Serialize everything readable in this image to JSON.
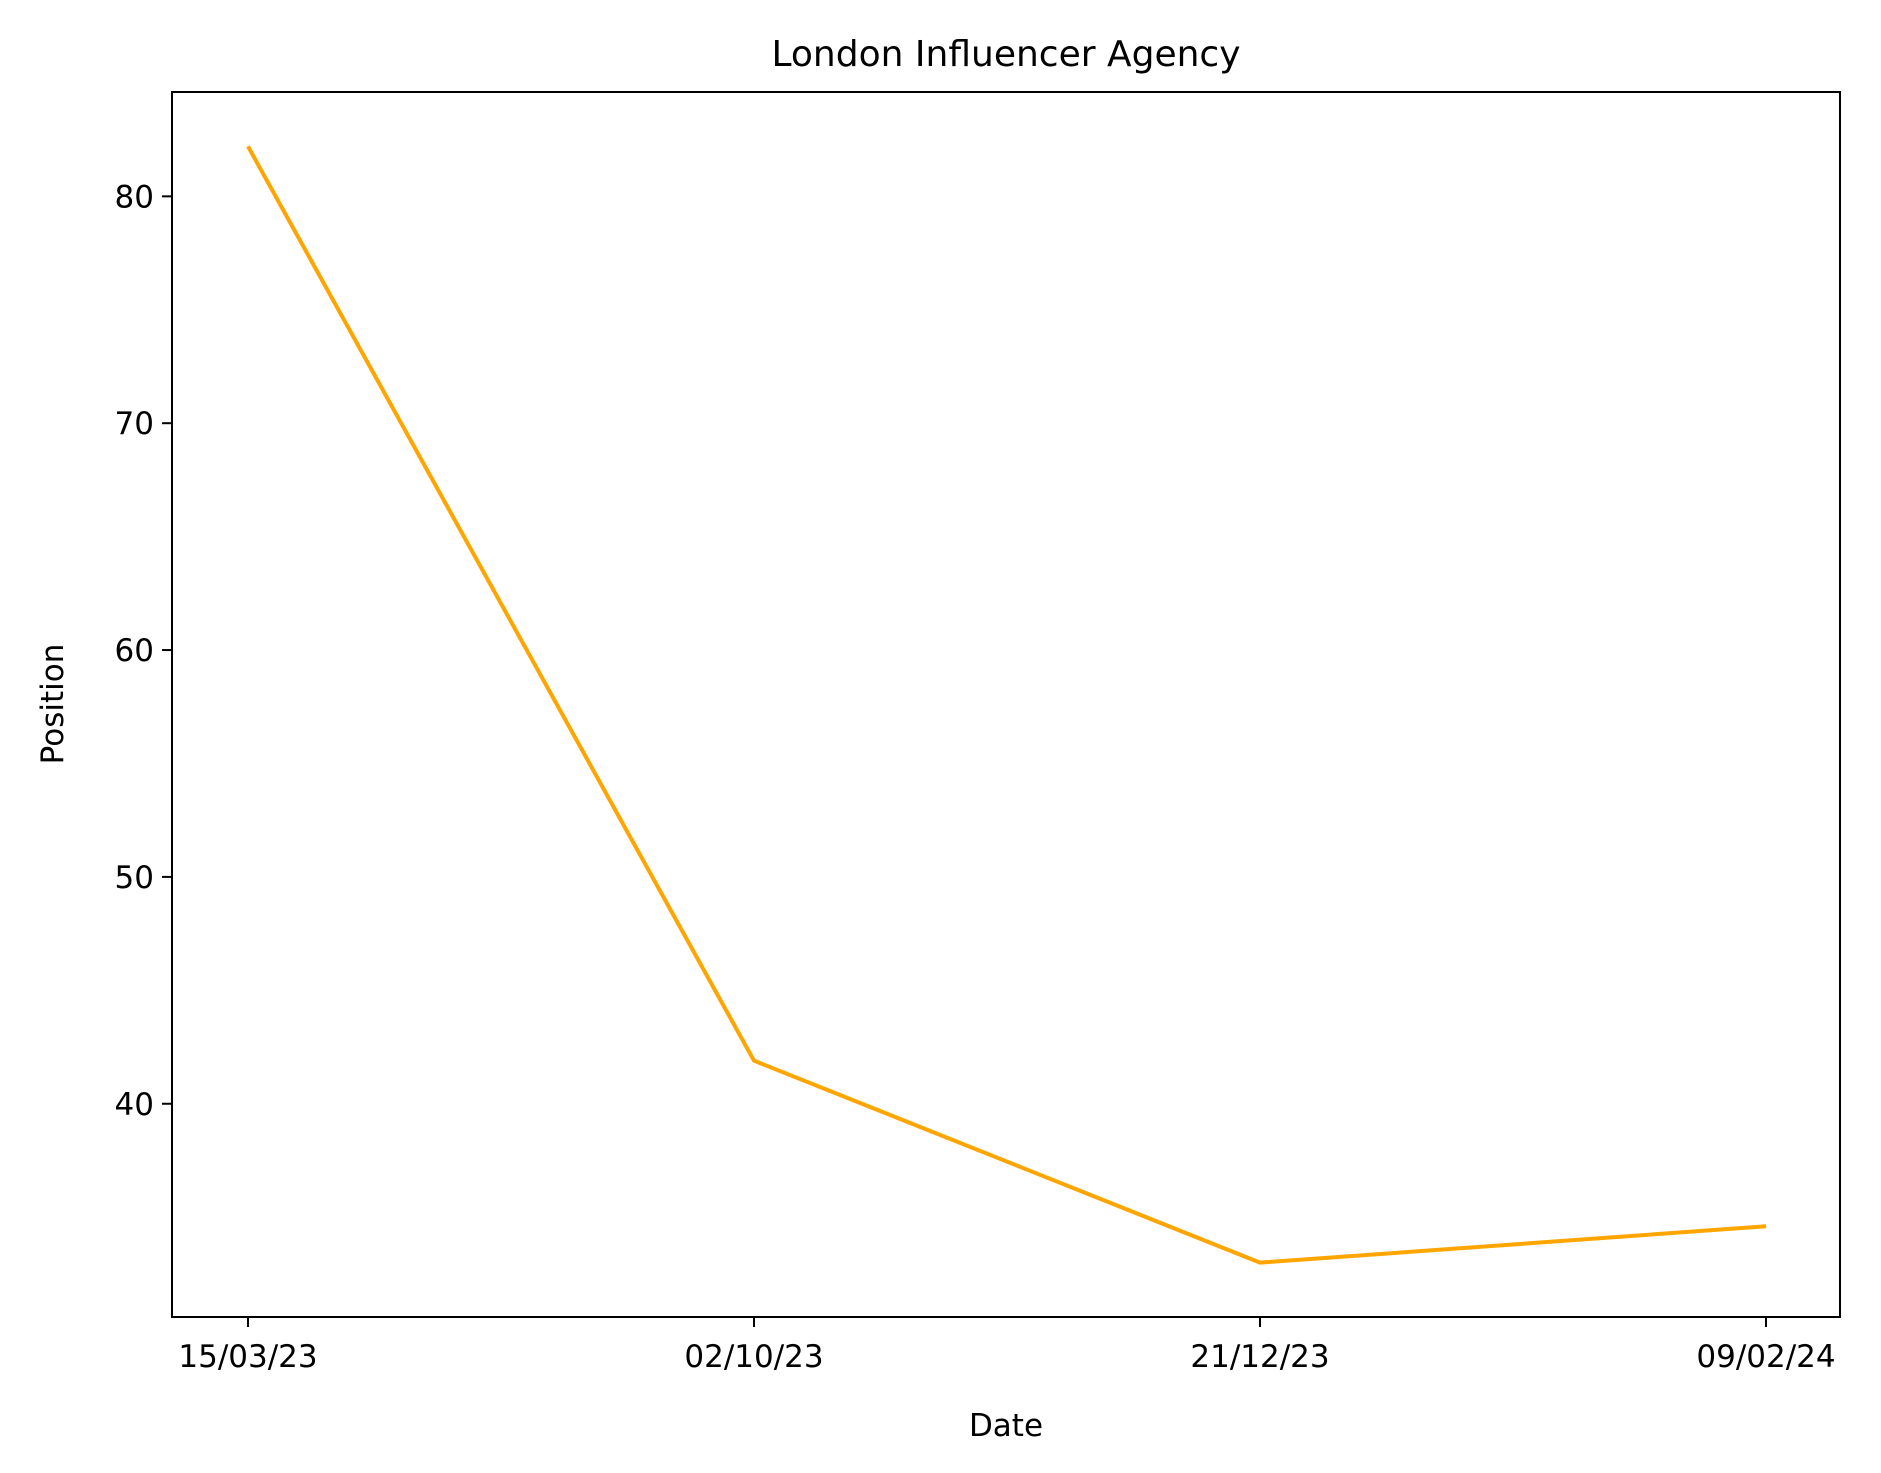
{
  "chart_data": {
    "type": "line",
    "title": "London Influencer Agency",
    "xlabel": "Date",
    "ylabel": "Position",
    "x": [
      "15/03/23",
      "02/10/23",
      "21/12/23",
      "09/02/24"
    ],
    "series": [
      {
        "values": [
          82.2,
          41.9,
          33.0,
          34.6
        ],
        "color": "#ffa500"
      }
    ],
    "yticks": [
      40,
      50,
      60,
      70,
      80
    ],
    "ylim": [
      30.6,
      84.6
    ],
    "grid": false,
    "legend": false
  }
}
